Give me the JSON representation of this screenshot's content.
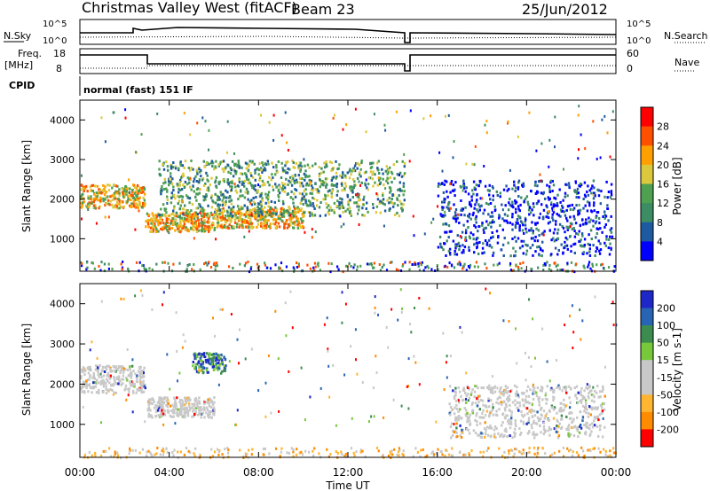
{
  "header": {
    "station": "Christmas Valley West (fitACF)",
    "beam": "Beam 23",
    "date": "25/Jun/2012"
  },
  "strip_labels": {
    "nsky": "N.Sky",
    "nsearch": "N.Search",
    "freq_line1": "Freq.",
    "freq_line2": "[MHz]",
    "nave": "Nave",
    "cpid": "CPID",
    "cpid_value": "normal (fast) 151 IF",
    "noise_ticks": [
      "10^5",
      "10^0"
    ],
    "freq_ticks": [
      "18",
      "8"
    ],
    "nave_ticks": [
      "60",
      "0"
    ]
  },
  "axes": {
    "ylabel": "Slant Range [km]",
    "xlabel": "Time UT",
    "x_ticks": [
      "00:00",
      "04:00",
      "08:00",
      "12:00",
      "16:00",
      "20:00",
      "00:00"
    ],
    "y_ticks": [
      "1000",
      "2000",
      "3000",
      "4000"
    ],
    "y_tick_values": [
      1000,
      2000,
      3000,
      4000
    ],
    "xlim": [
      0,
      24
    ],
    "ylim": [
      180,
      4500
    ]
  },
  "colors": {
    "power": [
      "#0000ff",
      "#1e5aa0",
      "#3c8c64",
      "#4fa050",
      "#dcc83c",
      "#ffa000",
      "#ff5000",
      "#ff0000"
    ],
    "velocity": [
      "#1e28c8",
      "#2864b4",
      "#3c8c50",
      "#78c83c",
      "#c8c8c8",
      "#c8c8c8",
      "#ffb432",
      "#ff8c00",
      "#ff0000"
    ]
  },
  "chart_data": [
    {
      "type": "heatmap",
      "title": "",
      "ylabel": "Slant Range [km]",
      "xlabel": "",
      "colorbar": {
        "label": "Power [dB]",
        "ticks": [
          "4",
          "8",
          "12",
          "16",
          "20",
          "24",
          "28"
        ],
        "range": [
          0,
          30
        ]
      },
      "regions": [
        {
          "start_h": 0.0,
          "end_h": 2.9,
          "range_km": [
            1800,
            2400
          ],
          "level": "high"
        },
        {
          "start_h": 2.9,
          "end_h": 6.0,
          "range_km": [
            1200,
            1700
          ],
          "level": "high"
        },
        {
          "start_h": 6.0,
          "end_h": 10.0,
          "range_km": [
            1300,
            1800
          ],
          "level": "high"
        },
        {
          "start_h": 3.5,
          "end_h": 14.5,
          "range_km": [
            1600,
            3000
          ],
          "level": "medium"
        },
        {
          "start_h": 16.0,
          "end_h": 23.8,
          "range_km": [
            600,
            2500
          ],
          "level": "low"
        }
      ]
    },
    {
      "type": "heatmap",
      "title": "",
      "ylabel": "Slant Range [km]",
      "xlabel": "Time UT",
      "colorbar": {
        "label": "Velocity [m s-1]",
        "ticks": [
          "200",
          "100",
          "50",
          "15",
          "-15",
          "-50",
          "-100",
          "-200"
        ],
        "range": [
          -250,
          250
        ]
      },
      "regions": [
        {
          "start_h": 0.0,
          "end_h": 2.9,
          "range_km": [
            1800,
            2500
          ],
          "velocity": "near 0"
        },
        {
          "start_h": 3.0,
          "end_h": 6.0,
          "range_km": [
            1200,
            1700
          ],
          "velocity": "near 0"
        },
        {
          "start_h": 5.0,
          "end_h": 6.5,
          "range_km": [
            2300,
            2800
          ],
          "velocity": "positive"
        },
        {
          "start_h": 16.5,
          "end_h": 23.5,
          "range_km": [
            700,
            2000
          ],
          "velocity": "near 0"
        }
      ]
    }
  ]
}
